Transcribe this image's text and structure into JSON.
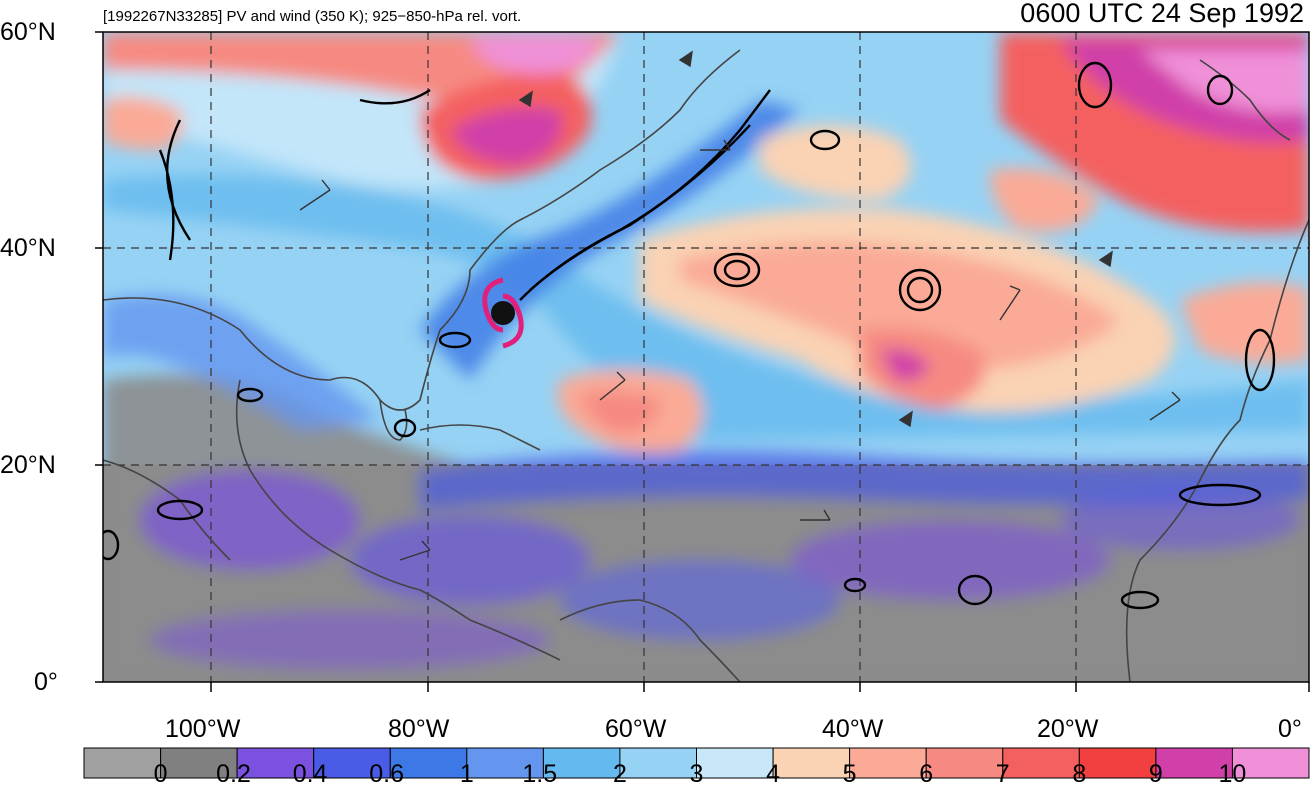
{
  "header": {
    "subtitle": "[1992267N33285] PV and wind (350 K); 925−850-hPa rel. vort.",
    "title": "0600 UTC 24 Sep 1992"
  },
  "axes": {
    "lat_labels": [
      "60°N",
      "40°N",
      "20°N",
      "0°"
    ],
    "lon_labels": [
      "100°W",
      "80°W",
      "60°W",
      "40°W",
      "20°W",
      "0°"
    ]
  },
  "colorbar": {
    "colors": [
      "#a0a0a0",
      "#808080",
      "#7b52e0",
      "#4a5be6",
      "#3c78e6",
      "#6496f0",
      "#64b9ee",
      "#96d2f4",
      "#c8e8fa",
      "#fad2b4",
      "#faaa96",
      "#f68a82",
      "#f46060",
      "#f24040",
      "#d040a8",
      "#f090d8"
    ],
    "labels": [
      "0",
      "0.2",
      "0.4",
      "0.6",
      "1",
      "1.5",
      "2",
      "3",
      "4",
      "5",
      "6",
      "7",
      "8",
      "9",
      "10"
    ]
  },
  "legend_note": "",
  "storm_symbol": "tropical-cyclone-icon"
}
